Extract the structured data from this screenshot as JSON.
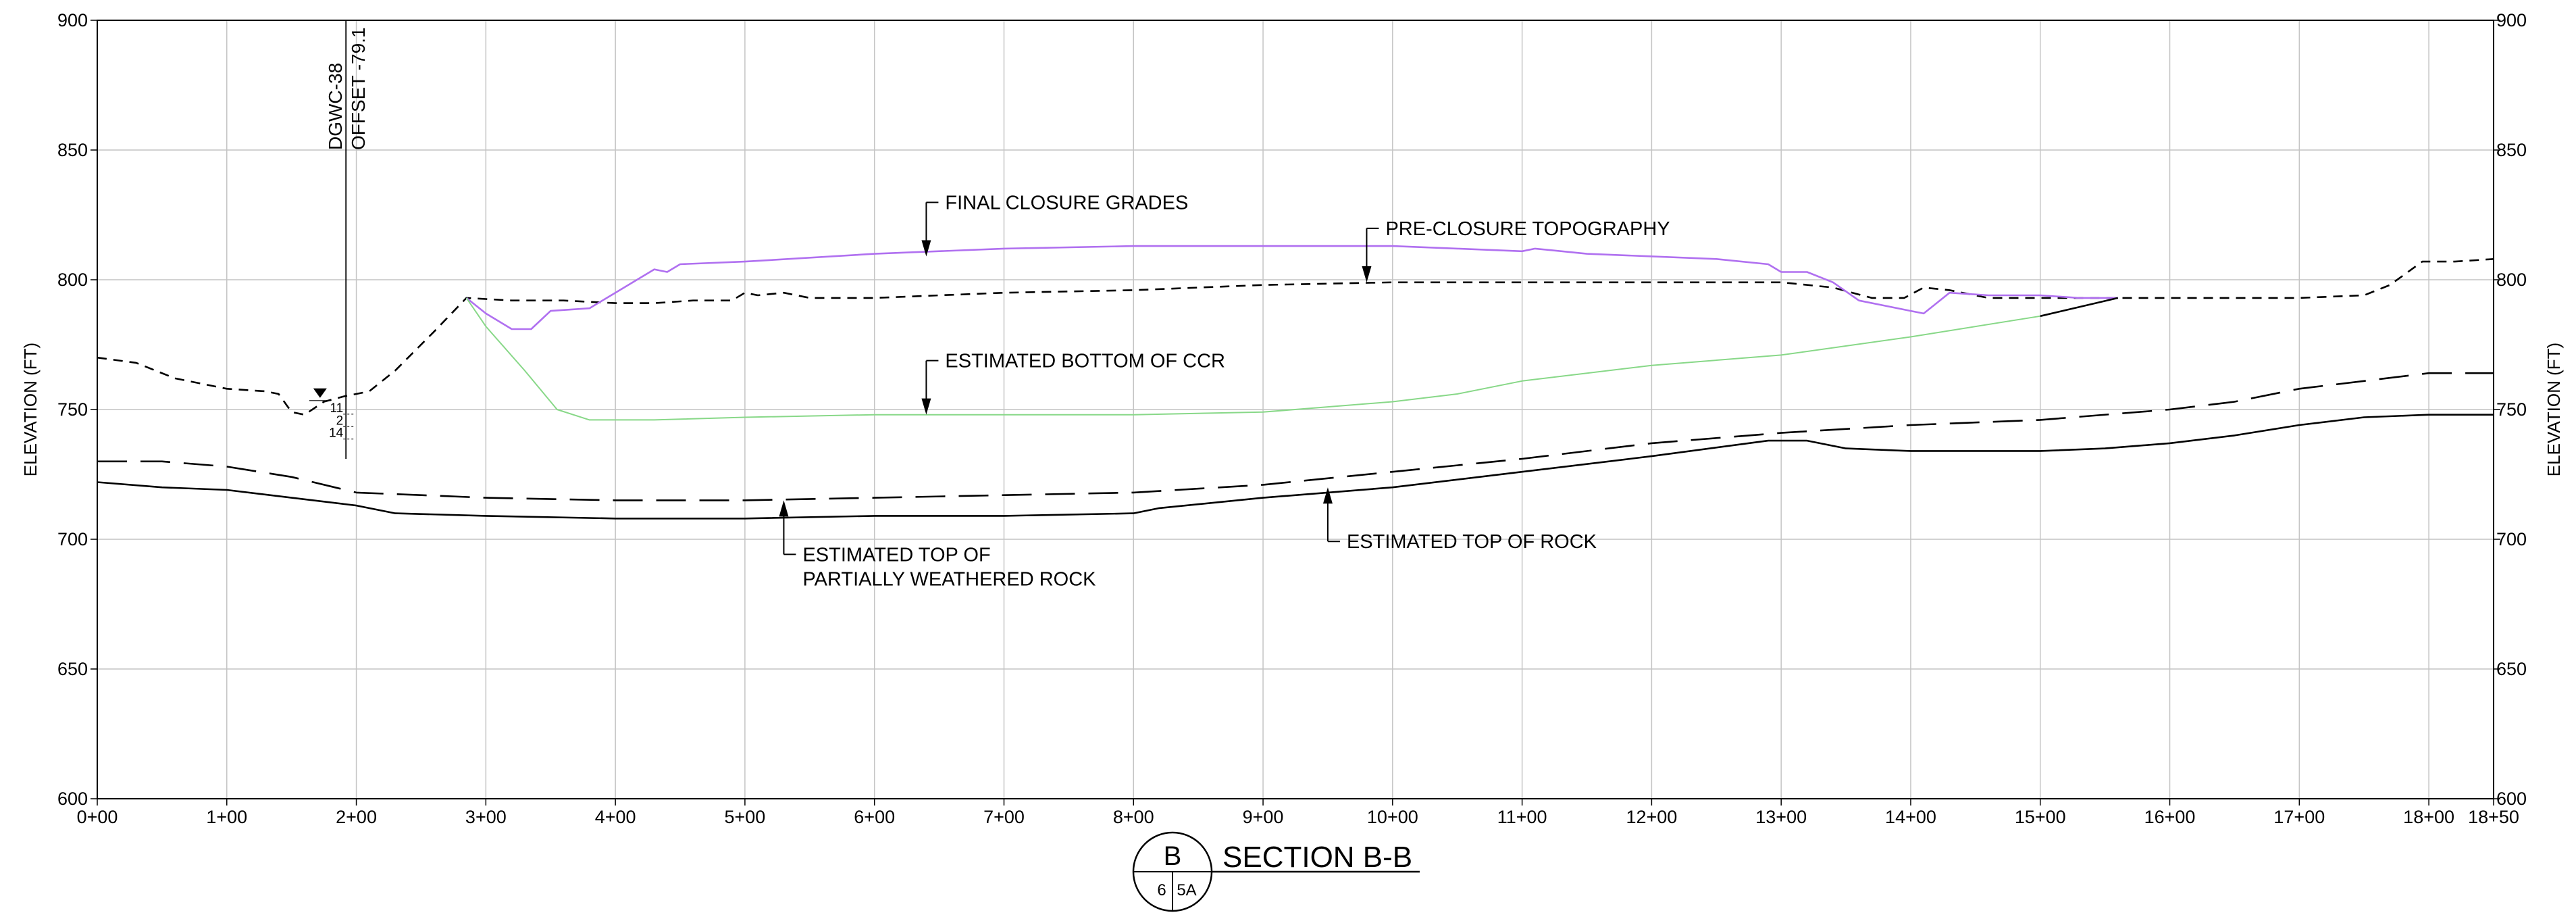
{
  "chart_data": {
    "type": "line",
    "ylabel": "ELEVATION (FT)",
    "ylim": [
      600,
      900
    ],
    "xlim": [
      0,
      18.5
    ],
    "grid": true,
    "y_ticks": [
      "600",
      "650",
      "700",
      "750",
      "800",
      "850",
      "900"
    ],
    "x_ticks": [
      "0+00",
      "1+00",
      "2+00",
      "3+00",
      "4+00",
      "5+00",
      "6+00",
      "7+00",
      "8+00",
      "9+00",
      "10+00",
      "11+00",
      "12+00",
      "13+00",
      "14+00",
      "15+00",
      "16+00",
      "17+00",
      "18+00",
      "18+50"
    ],
    "series": [
      {
        "key": "pre_closure",
        "color": "#000000",
        "style": "dashed",
        "points": [
          [
            0,
            770
          ],
          [
            0.3,
            768
          ],
          [
            0.6,
            762
          ],
          [
            1.0,
            758
          ],
          [
            1.3,
            757
          ],
          [
            1.4,
            756
          ],
          [
            1.5,
            749
          ],
          [
            1.6,
            748
          ],
          [
            1.75,
            753
          ],
          [
            1.9,
            755
          ],
          [
            2.1,
            757
          ],
          [
            2.3,
            765
          ],
          [
            2.6,
            780
          ],
          [
            2.85,
            793
          ],
          [
            3.2,
            792
          ],
          [
            3.6,
            792
          ],
          [
            4.0,
            791
          ],
          [
            4.3,
            791
          ],
          [
            4.6,
            792
          ],
          [
            4.9,
            792
          ],
          [
            5.0,
            795
          ],
          [
            5.1,
            794
          ],
          [
            5.3,
            795
          ],
          [
            5.5,
            793
          ],
          [
            6.0,
            793
          ],
          [
            7.0,
            795
          ],
          [
            8.0,
            796
          ],
          [
            9.0,
            798
          ],
          [
            10.0,
            799
          ],
          [
            11.0,
            799
          ],
          [
            12.0,
            799
          ],
          [
            13.0,
            799
          ],
          [
            13.4,
            797
          ],
          [
            13.7,
            793
          ],
          [
            13.95,
            793
          ],
          [
            14.1,
            797
          ],
          [
            14.3,
            796
          ],
          [
            14.6,
            793
          ],
          [
            15.0,
            793
          ],
          [
            15.5,
            793
          ],
          [
            16.0,
            793
          ],
          [
            17.0,
            793
          ],
          [
            17.5,
            794
          ],
          [
            17.7,
            798
          ],
          [
            17.95,
            807
          ],
          [
            18.2,
            807
          ],
          [
            18.5,
            808
          ]
        ]
      },
      {
        "key": "final_closure",
        "color": "#b070f0",
        "style": "solid",
        "points": [
          [
            2.85,
            793
          ],
          [
            3.0,
            787
          ],
          [
            3.2,
            781
          ],
          [
            3.35,
            781
          ],
          [
            3.5,
            788
          ],
          [
            3.8,
            789
          ],
          [
            4.0,
            795
          ],
          [
            4.3,
            804
          ],
          [
            4.4,
            803
          ],
          [
            4.5,
            806
          ],
          [
            5.0,
            807
          ],
          [
            6.0,
            810
          ],
          [
            7.0,
            812
          ],
          [
            8.0,
            813
          ],
          [
            9.0,
            813
          ],
          [
            10.0,
            813
          ],
          [
            10.5,
            812
          ],
          [
            11.0,
            811
          ],
          [
            11.1,
            812
          ],
          [
            11.5,
            810
          ],
          [
            12.0,
            809
          ],
          [
            12.5,
            808
          ],
          [
            12.9,
            806
          ],
          [
            13.0,
            803
          ],
          [
            13.2,
            803
          ],
          [
            13.4,
            799
          ],
          [
            13.6,
            792
          ],
          [
            13.8,
            790
          ],
          [
            14.0,
            788
          ],
          [
            14.1,
            787
          ],
          [
            14.2,
            791
          ],
          [
            14.3,
            795
          ],
          [
            14.6,
            794
          ],
          [
            15.0,
            794
          ],
          [
            15.3,
            793
          ],
          [
            15.6,
            793
          ]
        ]
      },
      {
        "key": "bottom_ccr",
        "color": "#88d888",
        "style": "solid",
        "points": [
          [
            2.85,
            793
          ],
          [
            3.0,
            782
          ],
          [
            3.3,
            765
          ],
          [
            3.55,
            750
          ],
          [
            3.8,
            746
          ],
          [
            4.3,
            746
          ],
          [
            5.0,
            747
          ],
          [
            6.0,
            748
          ],
          [
            7.0,
            748
          ],
          [
            8.0,
            748
          ],
          [
            9.0,
            749
          ],
          [
            10.0,
            753
          ],
          [
            10.5,
            756
          ],
          [
            11.0,
            761
          ],
          [
            12.0,
            767
          ],
          [
            13.0,
            771
          ],
          [
            14.0,
            778
          ],
          [
            15.0,
            786
          ]
        ]
      },
      {
        "key": "bottom_ccr_tail",
        "color": "#000000",
        "style": "solid",
        "points": [
          [
            15.0,
            786
          ],
          [
            15.6,
            793
          ]
        ]
      },
      {
        "key": "top_pwr",
        "color": "#000000",
        "style": "longdash",
        "points": [
          [
            0,
            730
          ],
          [
            0.5,
            730
          ],
          [
            1.0,
            728
          ],
          [
            1.5,
            724
          ],
          [
            2.0,
            718
          ],
          [
            2.5,
            717
          ],
          [
            3.0,
            716
          ],
          [
            4.0,
            715
          ],
          [
            5.0,
            715
          ],
          [
            6.0,
            716
          ],
          [
            7.0,
            717
          ],
          [
            8.0,
            718
          ],
          [
            9.0,
            721
          ],
          [
            10.0,
            726
          ],
          [
            11.0,
            731
          ],
          [
            12.0,
            737
          ],
          [
            13.0,
            741
          ],
          [
            14.0,
            744
          ],
          [
            15.0,
            746
          ],
          [
            16.0,
            750
          ],
          [
            16.5,
            753
          ],
          [
            17.0,
            758
          ],
          [
            17.5,
            761
          ],
          [
            18.0,
            764
          ],
          [
            18.5,
            764
          ]
        ]
      },
      {
        "key": "top_rock",
        "color": "#000000",
        "style": "solid",
        "points": [
          [
            0,
            722
          ],
          [
            0.5,
            720
          ],
          [
            1.0,
            719
          ],
          [
            1.5,
            716
          ],
          [
            2.0,
            713
          ],
          [
            2.3,
            710
          ],
          [
            3.0,
            709
          ],
          [
            4.0,
            708
          ],
          [
            5.0,
            708
          ],
          [
            6.0,
            709
          ],
          [
            7.0,
            709
          ],
          [
            8.0,
            710
          ],
          [
            8.2,
            712
          ],
          [
            9.0,
            716
          ],
          [
            10.0,
            720
          ],
          [
            11.0,
            726
          ],
          [
            12.0,
            732
          ],
          [
            12.9,
            738
          ],
          [
            13.2,
            738
          ],
          [
            13.5,
            735
          ],
          [
            14.0,
            734
          ],
          [
            15.0,
            734
          ],
          [
            15.5,
            735
          ],
          [
            16.0,
            737
          ],
          [
            16.5,
            740
          ],
          [
            17.0,
            744
          ],
          [
            17.5,
            747
          ],
          [
            18.0,
            748
          ],
          [
            18.5,
            748
          ]
        ]
      }
    ],
    "annotations": [
      {
        "key": "final_closure",
        "lines": [
          "FINAL CLOSURE GRADES"
        ],
        "arrow": [
          6.4,
          809
        ],
        "dir": "down"
      },
      {
        "key": "pre_closure",
        "lines": [
          "PRE-CLOSURE TOPOGRAPHY"
        ],
        "arrow": [
          9.8,
          799
        ],
        "dir": "down"
      },
      {
        "key": "bottom_ccr",
        "lines": [
          "ESTIMATED BOTTOM OF CCR"
        ],
        "arrow": [
          6.4,
          748
        ],
        "dir": "down"
      },
      {
        "key": "top_pwr",
        "lines": [
          "ESTIMATED TOP OF",
          "PARTIALLY WEATHERED ROCK"
        ],
        "arrow": [
          5.3,
          715
        ],
        "dir": "up"
      },
      {
        "key": "top_rock",
        "lines": [
          "ESTIMATED TOP OF ROCK"
        ],
        "arrow": [
          9.5,
          720
        ],
        "dir": "up"
      }
    ],
    "well": {
      "station": 1.92,
      "top": 900,
      "bottom": 731,
      "labels": [
        "DGWC-38",
        "OFFSET -79.1"
      ],
      "marks": [
        "11",
        "2",
        "14"
      ],
      "water_level_station": 1.72,
      "water_level": 755
    }
  },
  "section": {
    "letter": "B",
    "sheet_left": "6",
    "sheet_right": "5A",
    "title": "SECTION B-B"
  }
}
